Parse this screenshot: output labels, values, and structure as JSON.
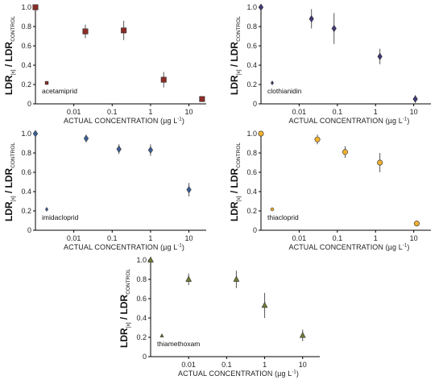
{
  "chart_data": [
    {
      "type": "scatter",
      "legend": "acetamiprid",
      "marker": "square",
      "color": "#8b2c26",
      "x_scale": "log",
      "xlabel_main": "ACTUAL CONCENTRATION (",
      "xlabel_unit": "µg L",
      "xlabel_exp": "-1",
      "xlabel_close": ")",
      "ylabel_main": "LDR",
      "ylabel_sub_x": "[x]",
      "ylabel_div": " / LDR",
      "ylabel_sub_c": "CONTROL",
      "ylim": [
        0,
        1.0
      ],
      "x_ticks": [
        "0.01",
        "0.1",
        "1",
        "10"
      ],
      "y_ticks": [
        "0",
        "0.2",
        "0.4",
        "0.6",
        "0.8",
        "1.0"
      ],
      "points": [
        {
          "x": 0.001,
          "y": 1.0,
          "err": 0
        },
        {
          "x": 0.02,
          "y": 0.75,
          "err": 0.07
        },
        {
          "x": 0.2,
          "y": 0.76,
          "err": 0.1
        },
        {
          "x": 2.2,
          "y": 0.25,
          "err": 0.08
        },
        {
          "x": 22,
          "y": 0.05,
          "err": 0.01
        }
      ]
    },
    {
      "type": "scatter",
      "legend": "clothianidin",
      "marker": "diamond",
      "color": "#3e3a78",
      "x_scale": "log",
      "xlabel_main": "ACTUAL CONCENTRATION (",
      "xlabel_unit": "µg L",
      "xlabel_exp": "-1",
      "xlabel_close": ")",
      "ylabel_main": "LDR",
      "ylabel_sub_x": "[x]",
      "ylabel_div": " / LDR",
      "ylabel_sub_c": "CONTROL",
      "ylim": [
        0,
        1.0
      ],
      "x_ticks": [
        "0.01",
        "0.1",
        "1",
        "10"
      ],
      "y_ticks": [
        "0",
        "0.2",
        "0.4",
        "0.6",
        "0.8",
        "1.0"
      ],
      "points": [
        {
          "x": 0.001,
          "y": 1.0,
          "err": 0
        },
        {
          "x": 0.021,
          "y": 0.88,
          "err": 0.1
        },
        {
          "x": 0.082,
          "y": 0.78,
          "err": 0.16
        },
        {
          "x": 1.3,
          "y": 0.49,
          "err": 0.08
        },
        {
          "x": 11,
          "y": 0.05,
          "err": 0.04
        }
      ]
    },
    {
      "type": "scatter",
      "legend": "imidacloprid",
      "marker": "diamond",
      "color": "#3d5f9a",
      "x_scale": "log",
      "xlabel_main": "ACTUAL CONCENTRATION (",
      "xlabel_unit": "µg L",
      "xlabel_exp": "-1",
      "xlabel_close": ")",
      "ylabel_main": "LDR",
      "ylabel_sub_x": "[x]",
      "ylabel_div": " / LDR",
      "ylabel_sub_c": "CONTROL",
      "ylim": [
        0,
        1.0
      ],
      "x_ticks": [
        "0.01",
        "0.1",
        "1",
        "10"
      ],
      "y_ticks": [
        "0",
        "0.2",
        "0.4",
        "0.6",
        "0.8",
        "1.0"
      ],
      "points": [
        {
          "x": 0.001,
          "y": 1.0,
          "err": 0
        },
        {
          "x": 0.021,
          "y": 0.95,
          "err": 0.04
        },
        {
          "x": 0.15,
          "y": 0.84,
          "err": 0.05
        },
        {
          "x": 1.0,
          "y": 0.83,
          "err": 0.06
        },
        {
          "x": 10,
          "y": 0.42,
          "err": 0.07
        }
      ]
    },
    {
      "type": "scatter",
      "legend": "thiacloprid",
      "marker": "circle",
      "color": "#f2b233",
      "x_scale": "log",
      "xlabel_main": "ACTUAL CONCENTRATION (",
      "xlabel_unit": "µg L",
      "xlabel_exp": "-1",
      "xlabel_close": ")",
      "ylabel_main": "LDR",
      "ylabel_sub_x": "[x]",
      "ylabel_div": " / LDR",
      "ylabel_sub_c": "CONTROL",
      "ylim": [
        0,
        1.0
      ],
      "x_ticks": [
        "0.01",
        "0.1",
        "1",
        "10"
      ],
      "y_ticks": [
        "0",
        "0.2",
        "0.4",
        "0.6",
        "0.8",
        "1.0"
      ],
      "points": [
        {
          "x": 0.001,
          "y": 1.0,
          "err": 0
        },
        {
          "x": 0.03,
          "y": 0.94,
          "err": 0.05
        },
        {
          "x": 0.16,
          "y": 0.81,
          "err": 0.06
        },
        {
          "x": 1.3,
          "y": 0.7,
          "err": 0.1
        },
        {
          "x": 12,
          "y": 0.07,
          "err": 0.01
        }
      ]
    },
    {
      "type": "scatter",
      "legend": "thiamethoxam",
      "marker": "triangle",
      "color": "#6f7f35",
      "x_scale": "log",
      "xlabel_main": "ACTUAL CONCENTRATION (",
      "xlabel_unit": "µg L",
      "xlabel_exp": "-1",
      "xlabel_close": ")",
      "ylabel_main": "LDR",
      "ylabel_sub_x": "[x]",
      "ylabel_div": " / LDR",
      "ylabel_sub_c": "CONTROL",
      "ylim": [
        0,
        1.0
      ],
      "x_ticks": [
        "0.01",
        "0.1",
        "1",
        "10"
      ],
      "y_ticks": [
        "0",
        "0.2",
        "0.4",
        "0.6",
        "0.8",
        "1.0"
      ],
      "points": [
        {
          "x": 0.001,
          "y": 1.0,
          "err": 0
        },
        {
          "x": 0.01,
          "y": 0.8,
          "err": 0.06
        },
        {
          "x": 0.18,
          "y": 0.8,
          "err": 0.09
        },
        {
          "x": 1.0,
          "y": 0.53,
          "err": 0.13
        },
        {
          "x": 10,
          "y": 0.22,
          "err": 0.06
        }
      ]
    }
  ]
}
